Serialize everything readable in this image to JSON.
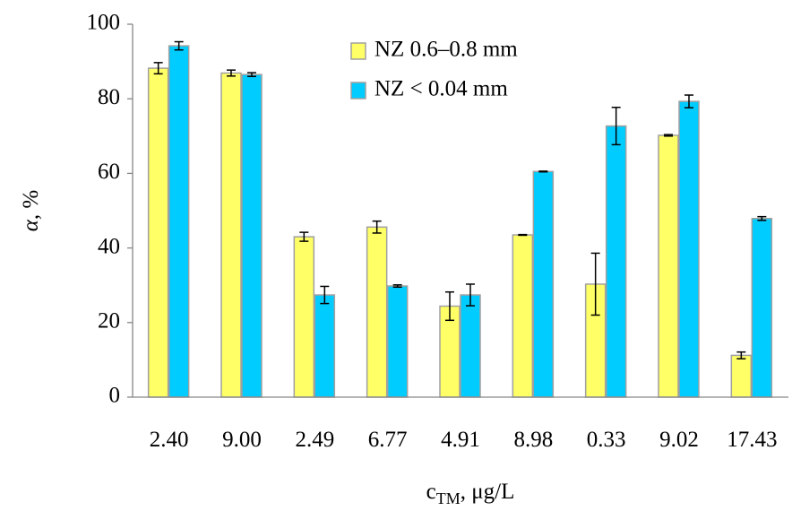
{
  "chart_data": {
    "type": "bar",
    "categories": [
      "2.40",
      "9.00",
      "2.49",
      "6.77",
      "4.91",
      "8.98",
      "0.33",
      "9.02",
      "17.43"
    ],
    "series": [
      {
        "name": "NZ 0.6–0.8 mm",
        "color": "#ffff66",
        "values": [
          88.2,
          86.9,
          43.0,
          45.6,
          24.4,
          43.5,
          30.3,
          70.2,
          11.2
        ],
        "errors": [
          1.5,
          0.8,
          1.2,
          1.6,
          3.8,
          0.1,
          8.3,
          0.2,
          0.9
        ]
      },
      {
        "name": "NZ < 0.04 mm",
        "color": "#00ccff",
        "values": [
          94.2,
          86.5,
          27.4,
          29.8,
          27.4,
          60.5,
          72.7,
          79.3,
          47.9
        ],
        "errors": [
          1.1,
          0.5,
          2.3,
          0.3,
          2.9,
          0.1,
          5.0,
          1.7,
          0.5
        ]
      }
    ],
    "x_label": {
      "main": "c",
      "sub": "TM",
      "rest": ", μg/L"
    },
    "y_label": {
      "symbol": "α",
      "rest": ", %"
    },
    "ylim": [
      0,
      100
    ],
    "yticks": [
      0,
      20,
      40,
      60,
      80,
      100
    ],
    "grid": false,
    "legend": "top"
  }
}
